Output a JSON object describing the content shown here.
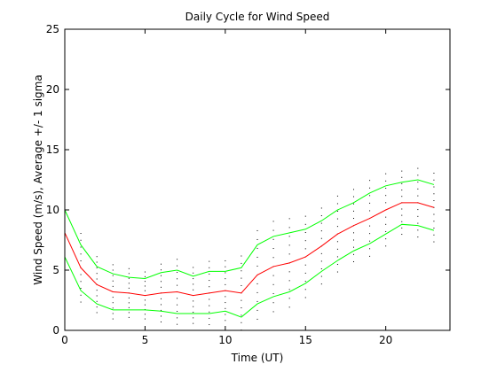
{
  "chart_data": {
    "type": "line",
    "title": "Daily Cycle for Wind Speed",
    "xlabel": "Time (UT)",
    "ylabel": "Wind Speed (m/s), Average +/- 1 sigma",
    "xlim": [
      0,
      24
    ],
    "ylim": [
      0,
      25
    ],
    "xticks": [
      0,
      5,
      10,
      15,
      20
    ],
    "yticks": [
      0,
      5,
      10,
      15,
      20,
      25
    ],
    "grid": false,
    "x": [
      0,
      1,
      2,
      3,
      4,
      5,
      6,
      7,
      8,
      9,
      10,
      11,
      12,
      13,
      14,
      15,
      16,
      17,
      18,
      19,
      20,
      21,
      22,
      23
    ],
    "series": [
      {
        "role": "average",
        "color": "#ff0000",
        "values": [
          8.1,
          5.2,
          3.8,
          3.2,
          3.1,
          2.9,
          3.1,
          3.2,
          2.9,
          3.1,
          3.3,
          3.1,
          4.6,
          5.3,
          5.6,
          6.1,
          7.0,
          8.0,
          8.7,
          9.3,
          10.0,
          10.6,
          10.6,
          10.2
        ]
      },
      {
        "role": "average_plus_1_sigma",
        "color": "#00ff00",
        "values": [
          10.0,
          7.1,
          5.3,
          4.7,
          4.4,
          4.3,
          4.8,
          5.0,
          4.5,
          4.9,
          4.9,
          5.2,
          7.1,
          7.8,
          8.1,
          8.4,
          9.1,
          10.0,
          10.6,
          11.4,
          12.0,
          12.3,
          12.5,
          12.1
        ]
      },
      {
        "role": "average_minus_1_sigma",
        "color": "#00ff00",
        "values": [
          6.1,
          3.3,
          2.2,
          1.7,
          1.7,
          1.7,
          1.6,
          1.4,
          1.4,
          1.4,
          1.6,
          1.1,
          2.2,
          2.8,
          3.2,
          3.9,
          4.9,
          5.8,
          6.6,
          7.2,
          8.0,
          8.8,
          8.7,
          8.3
        ]
      }
    ],
    "scatter_color": "#000000",
    "scatter_offsets": [
      -1.5,
      -1.2,
      -0.9,
      -0.6,
      -0.3,
      0.0,
      0.3,
      0.6,
      0.9,
      1.2,
      1.5
    ]
  }
}
